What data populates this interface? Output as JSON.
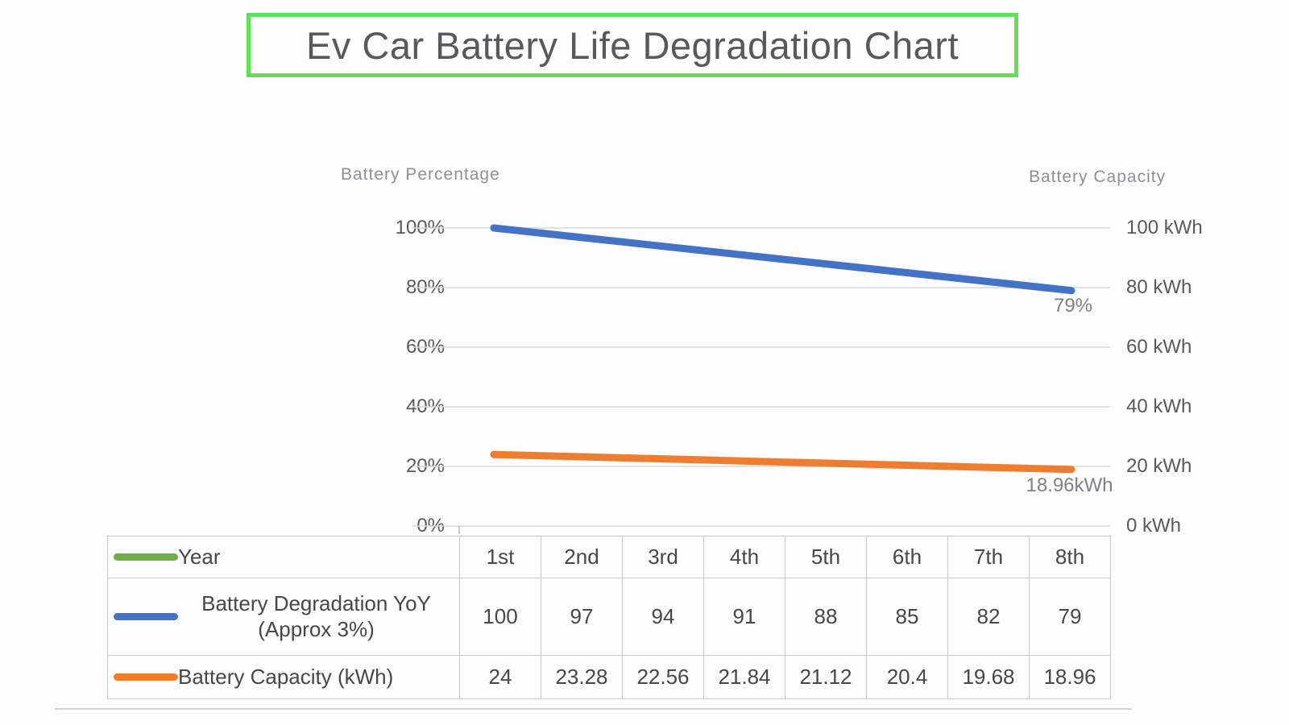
{
  "title": "Ev Car Battery Life Degradation Chart",
  "colors": {
    "title_border": "#5fdf5a",
    "blue": "#4472c4",
    "orange": "#ed7d31",
    "green": "#70ad47",
    "gridline": "#d8d8d8",
    "tick_mark": "#bfbfbf",
    "table_border": "#c9c9c9",
    "text_gray": "#595959",
    "label_gray": "#7f8184"
  },
  "chart_data": {
    "type": "line",
    "categories": [
      "1st",
      "2nd",
      "3rd",
      "4th",
      "5th",
      "6th",
      "7th",
      "8th"
    ],
    "x_axis_label": "Year",
    "series": [
      {
        "name": "Battery Degradation YoY (Approx 3%)",
        "axis": "left",
        "color_key": "blue",
        "values": [
          100,
          97,
          94,
          91,
          88,
          85,
          82,
          79
        ],
        "end_label": "79%"
      },
      {
        "name": "Battery Capacity (kWh)",
        "axis": "right",
        "color_key": "orange",
        "values": [
          24,
          23.28,
          22.56,
          21.84,
          21.12,
          20.4,
          19.68,
          18.96
        ],
        "end_label": "18.96kWh"
      }
    ],
    "left_axis": {
      "title": "Battery Percentage",
      "tick_labels": [
        "100%",
        "80%",
        "60%",
        "40%",
        "20%",
        "0%"
      ],
      "min": 0,
      "max": 100,
      "gridlines": true
    },
    "right_axis": {
      "title": "Battery Capacity",
      "tick_labels": [
        "100 kWh",
        "80 kWh",
        "60 kWh",
        "40 kWh",
        "20 kWh",
        "0 kWh"
      ],
      "min": 0,
      "max": 100
    },
    "legend_position": "table-left"
  },
  "table": {
    "rows": [
      {
        "label": "Year",
        "swatch": "green",
        "align": "left",
        "cells": [
          "1st",
          "2nd",
          "3rd",
          "4th",
          "5th",
          "6th",
          "7th",
          "8th"
        ]
      },
      {
        "label": "Battery Degradation YoY (Approx 3%)",
        "swatch": "blue",
        "align": "center",
        "cells": [
          "100",
          "97",
          "94",
          "91",
          "88",
          "85",
          "82",
          "79"
        ]
      },
      {
        "label": "Battery Capacity (kWh)",
        "swatch": "orange",
        "align": "left",
        "cells": [
          "24",
          "23.28",
          "22.56",
          "21.84",
          "21.12",
          "20.4",
          "19.68",
          "18.96"
        ]
      }
    ]
  }
}
